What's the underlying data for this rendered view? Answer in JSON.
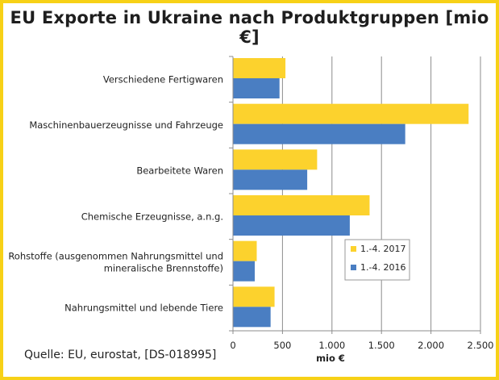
{
  "title": "EU Exporte in Ukraine nach Produktgruppen [mio €]",
  "source": "Quelle: EU, eurostat, [DS-018995]",
  "colors": {
    "frame": "#f7d117",
    "series_2017": "#fcd22d",
    "series_2016": "#4a7ec2",
    "grid": "#8c8c8c"
  },
  "chart_data": {
    "type": "bar",
    "orientation": "horizontal",
    "categories": [
      "Verschiedene Fertigwaren",
      "Maschinenbauerzeugnisse und Fahrzeuge",
      "Bearbeitete Waren",
      "Chemische Erzeugnisse, a.n.g.",
      "Rohstoffe (ausgenommen Nahrungsmittel und mineralische Brennstoffe)",
      "Nahrungsmittel und lebende Tiere"
    ],
    "category_lines": [
      [
        "Verschiedene Fertigwaren"
      ],
      [
        "Maschinenbauerzeugnisse und Fahrzeuge"
      ],
      [
        "Bearbeitete Waren"
      ],
      [
        "Chemische Erzeugnisse, a.n.g."
      ],
      [
        "Rohstoffe (ausgenommen Nahrungsmittel und",
        "mineralische Brennstoffe)"
      ],
      [
        "Nahrungsmittel und lebende Tiere"
      ]
    ],
    "series": [
      {
        "name": "1.-4. 2017",
        "color": "#fcd22d",
        "values": [
          530,
          2380,
          850,
          1380,
          240,
          420
        ]
      },
      {
        "name": "1.-4. 2016",
        "color": "#4a7ec2",
        "values": [
          470,
          1740,
          750,
          1180,
          220,
          380
        ]
      }
    ],
    "xlim": [
      0,
      2500
    ],
    "ticks": [
      0,
      500,
      1000,
      1500,
      2000,
      2500
    ],
    "tick_labels": [
      "0",
      "500",
      "1.000",
      "1.500",
      "2.000",
      "2.500"
    ],
    "xlabel": "mio €",
    "grid": true,
    "legend_position": "right"
  }
}
